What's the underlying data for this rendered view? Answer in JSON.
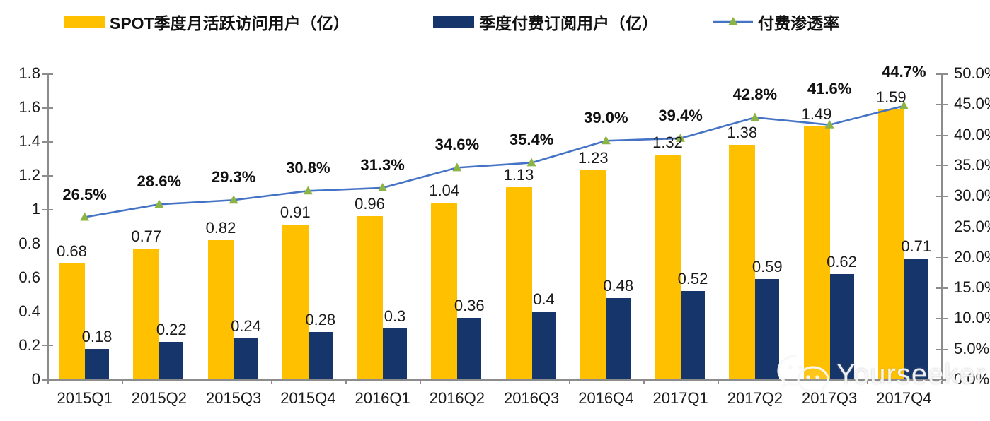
{
  "chart_data": {
    "type": "combo-bar-line",
    "categories": [
      "2015Q1",
      "2015Q2",
      "2015Q3",
      "2015Q4",
      "2016Q1",
      "2016Q2",
      "2016Q3",
      "2016Q4",
      "2017Q1",
      "2017Q2",
      "2017Q3",
      "2017Q4"
    ],
    "series": [
      {
        "name": "SPOT季度月活跃访问用户（亿）",
        "type": "bar",
        "color": "#FFC000",
        "axis": "left",
        "values": [
          0.68,
          0.77,
          0.82,
          0.91,
          0.96,
          1.04,
          1.13,
          1.23,
          1.32,
          1.38,
          1.49,
          1.59
        ],
        "labels": [
          "0.68",
          "0.77",
          "0.82",
          "0.91",
          "0.96",
          "1.04",
          "1.13",
          "1.23",
          "1.32",
          "1.38",
          "1.49",
          "1.59"
        ]
      },
      {
        "name": "季度付费订阅用户（亿）",
        "type": "bar",
        "color": "#16366B",
        "axis": "left",
        "values": [
          0.18,
          0.22,
          0.24,
          0.28,
          0.3,
          0.36,
          0.4,
          0.48,
          0.52,
          0.59,
          0.62,
          0.71
        ],
        "labels": [
          "0.18",
          "0.22",
          "0.24",
          "0.28",
          "0.3",
          "0.36",
          "0.4",
          "0.48",
          "0.52",
          "0.59",
          "0.62",
          "0.71"
        ]
      },
      {
        "name": "付费渗透率",
        "type": "line",
        "color": "#4472C4",
        "marker": "triangle",
        "marker_color": "#8CB445",
        "axis": "right",
        "values": [
          26.5,
          28.6,
          29.3,
          30.8,
          31.3,
          34.6,
          35.4,
          39.0,
          39.4,
          42.8,
          41.6,
          44.7
        ],
        "labels": [
          "26.5%",
          "28.6%",
          "29.3%",
          "30.8%",
          "31.3%",
          "34.6%",
          "35.4%",
          "39.0%",
          "39.4%",
          "42.8%",
          "41.6%",
          "44.7%"
        ]
      }
    ],
    "left_axis": {
      "min": 0,
      "max": 1.8,
      "ticks": [
        "0",
        "0.2",
        "0.4",
        "0.6",
        "0.8",
        "1",
        "1.2",
        "1.4",
        "1.6",
        "1.8"
      ]
    },
    "right_axis": {
      "min": 0,
      "max": 50,
      "ticks": [
        "0.0%",
        "5.0%",
        "10.0%",
        "15.0%",
        "20.0%",
        "25.0%",
        "30.0%",
        "35.0%",
        "40.0%",
        "45.0%",
        "50.0%"
      ]
    },
    "legend_position": "top",
    "grid": false,
    "axis_color": "#8C8C8C"
  },
  "watermark": {
    "text": "Yourseeker",
    "icon": "wechat-icon"
  }
}
